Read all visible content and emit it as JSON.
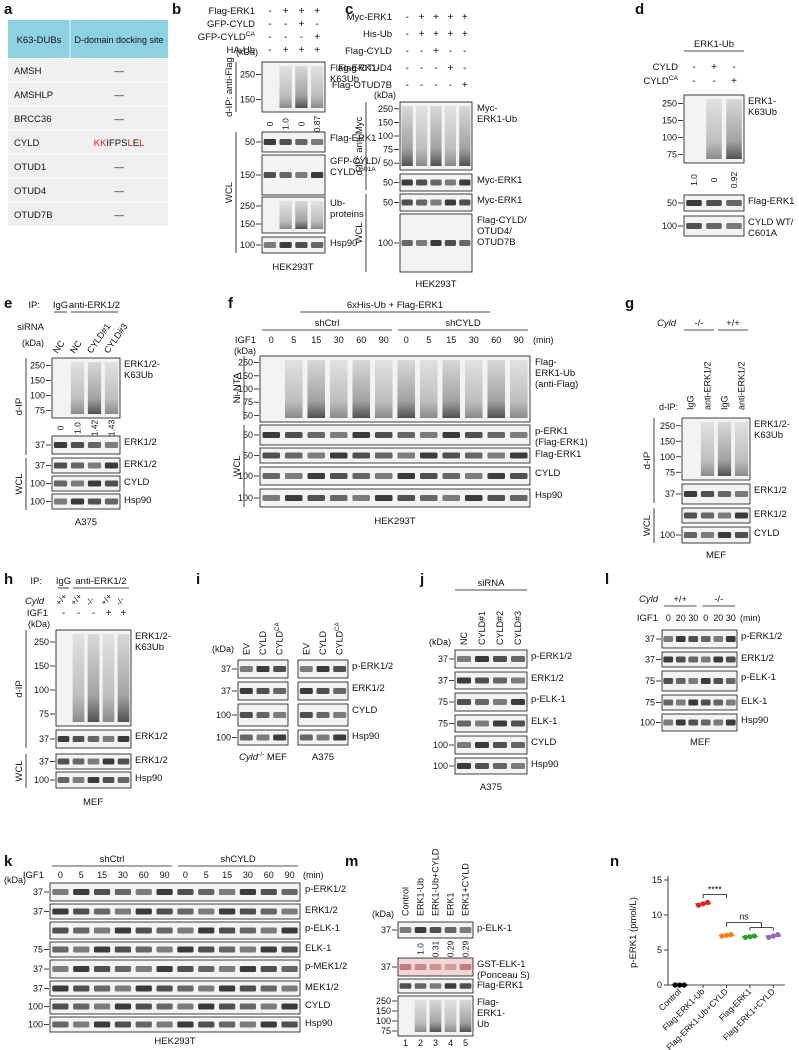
{
  "panels": {
    "a": {
      "label": "a",
      "header": [
        "K63-DUBs",
        "D-domain docking site"
      ],
      "rows": [
        {
          "dub": "AMSH",
          "site": "—"
        },
        {
          "dub": "AMSHLP",
          "site": "—"
        },
        {
          "dub": "BRCC36",
          "site": "—"
        },
        {
          "dub": "CYLD",
          "site": [
            {
              "text": "KK",
              "color": "#e31a1c"
            },
            {
              "text": "IFPS",
              "color": "#111111"
            },
            {
              "text": "L",
              "color": "#e31a1c"
            },
            {
              "text": "E",
              "color": "#111111"
            },
            {
              "text": "L",
              "color": "#e31a1c"
            }
          ]
        },
        {
          "dub": "OTUD1",
          "site": "—"
        },
        {
          "dub": "OTUD4",
          "site": "—"
        },
        {
          "dub": "OTUD7B",
          "site": "—"
        }
      ]
    },
    "b": {
      "label": "b",
      "conditions": [
        {
          "name": "Flag-ERK1",
          "signs": [
            "-",
            "+",
            "+",
            "+"
          ]
        },
        {
          "name": "GFP-CYLD",
          "signs": [
            "-",
            "-",
            "+",
            "-"
          ]
        },
        {
          "name": {
            "text": "GFP-CYLD",
            "sup": "CA"
          },
          "signs": [
            "-",
            "-",
            "-",
            "+"
          ]
        },
        {
          "name": "HA-Ub",
          "signs": [
            "-",
            "+",
            "+",
            "+"
          ]
        }
      ],
      "kda": "(kDa)",
      "blots": [
        {
          "markers": [
            "250",
            "150"
          ],
          "label": [
            "Flag-ERK1-",
            "K63Ub"
          ]
        },
        {
          "markers": [
            "50"
          ],
          "label": [
            "Flag-ERK1"
          ]
        },
        {
          "markers": [
            "150"
          ],
          "label": [
            "GFP-CYLD/",
            {
              "text": "CYLD",
              "sup": "C601A"
            }
          ]
        },
        {
          "markers": [
            "250",
            "150"
          ],
          "label": [
            "Ub-",
            "proteins"
          ]
        },
        {
          "markers": [
            "100"
          ],
          "label": [
            "Hsp90"
          ]
        }
      ],
      "quant": [
        "0",
        "1.0",
        "0",
        "0.87"
      ],
      "sides": [
        "d-IP: anti-Flag",
        "WCL"
      ],
      "cell": "HEK293T"
    },
    "c": {
      "label": "c",
      "conditions": [
        {
          "name": "Myc-ERK1",
          "signs": [
            "-",
            "+",
            "+",
            "+",
            "+"
          ]
        },
        {
          "name": "His-Ub",
          "signs": [
            "-",
            "+",
            "+",
            "+",
            "+"
          ]
        },
        {
          "name": "Flag-CYLD",
          "signs": [
            "-",
            "-",
            "+",
            "-",
            "-"
          ]
        },
        {
          "name": "Flag-OTUD4",
          "signs": [
            "-",
            "-",
            "-",
            "+",
            "-"
          ]
        },
        {
          "name": "Flag-OTUD7B",
          "signs": [
            "-",
            "-",
            "-",
            "-",
            "+"
          ]
        }
      ],
      "kda": "(kDa)",
      "blots": [
        {
          "markers": [
            "250",
            "150",
            "100",
            "75",
            "50"
          ],
          "label": [
            "Myc-",
            "ERK1-Ub"
          ]
        },
        {
          "markers": [
            "50"
          ],
          "label": [
            "Myc-ERK1"
          ]
        },
        {
          "markers": [
            "50"
          ],
          "label": [
            "Myc-ERK1"
          ]
        },
        {
          "markers": [
            "100"
          ],
          "label": [
            "Flag-CYLD/",
            "OTUD4/",
            "OTUD7B"
          ]
        }
      ],
      "sides": [
        "d-IP: anti-Myc",
        "WCL"
      ],
      "cell": "HEK293T"
    },
    "d": {
      "label": "d",
      "header": "ERK1-Ub",
      "conditions": [
        {
          "name": "CYLD",
          "signs": [
            "-",
            "+",
            "-"
          ]
        },
        {
          "name": {
            "text": "CYLD",
            "sup": "CA"
          },
          "signs": [
            "-",
            "-",
            "+"
          ]
        }
      ],
      "blots": [
        {
          "markers": [
            "250",
            "150",
            "100",
            "75"
          ],
          "label": [
            "ERK1-",
            "K63Ub"
          ]
        },
        {
          "markers": [
            "50"
          ],
          "label": [
            "Flag-ERK1"
          ]
        },
        {
          "markers": [
            "100"
          ],
          "label": [
            "CYLD WT/",
            "C601A"
          ]
        }
      ],
      "quant": [
        "1.0",
        "0",
        "0.92"
      ]
    },
    "e": {
      "label": "e",
      "ip": "IP:",
      "ip_groups": [
        "IgG",
        "anti-ERK1/2"
      ],
      "sirna": "siRNA",
      "lanes": [
        "NC",
        "NC",
        "CYLD#1",
        "CYLD#3"
      ],
      "kda": "(kDa)",
      "blots": [
        {
          "markers": [
            "250",
            "150",
            "100",
            "75"
          ],
          "label": [
            "ERK1/2-",
            "K63Ub"
          ]
        },
        {
          "markers": [
            "37"
          ],
          "label": [
            "ERK1/2"
          ]
        },
        {
          "markers": [
            "37"
          ],
          "label": [
            "ERK1/2"
          ]
        },
        {
          "markers": [
            "100"
          ],
          "label": [
            "CYLD"
          ]
        },
        {
          "markers": [
            "100"
          ],
          "label": [
            "Hsp90"
          ]
        }
      ],
      "quant": [
        "0",
        "1.0",
        "1.42",
        "1.43"
      ],
      "sides": [
        "d-IP",
        "WCL"
      ],
      "cell": "A375"
    },
    "f": {
      "label": "f",
      "header": "6xHis-Ub + Flag-ERK1",
      "groups": [
        "shCtrl",
        "shCYLD"
      ],
      "igf1": "IGF1",
      "times": [
        "0",
        "5",
        "15",
        "30",
        "60",
        "90",
        "0",
        "5",
        "15",
        "30",
        "60",
        "90"
      ],
      "unit": "(min)",
      "kda": "(kDa)",
      "blots": [
        {
          "markers": [
            "250",
            "150",
            "100",
            "75",
            "50"
          ],
          "label": [
            "Flag-",
            "ERK1-Ub",
            "(anti-Flag)"
          ]
        },
        {
          "markers": [
            "50"
          ],
          "label": [
            "p-ERK1",
            "(Flag-ERK1)"
          ]
        },
        {
          "markers": [
            "50"
          ],
          "label": [
            "Flag-ERK1"
          ]
        },
        {
          "markers": [
            "100"
          ],
          "label": [
            "CYLD"
          ]
        },
        {
          "markers": [
            "100"
          ],
          "label": [
            "Hsp90"
          ]
        }
      ],
      "sides": [
        "Ni-NTA",
        "WCL"
      ],
      "cell": "HEK293T"
    },
    "g": {
      "label": "g",
      "genotype_label": "Cyld",
      "genotypes": [
        "-/-",
        "+/+"
      ],
      "lanes": [
        "IgG",
        "anti-ERK1/2",
        "IgG",
        "anti-ERK1/2"
      ],
      "dip": "d-IP:",
      "blots": [
        {
          "markers": [
            "250",
            "150",
            "100",
            "75"
          ],
          "label": [
            "ERK1/2-",
            "K63Ub"
          ]
        },
        {
          "markers": [
            "37"
          ],
          "label": [
            "ERK1/2"
          ]
        },
        {
          "markers": [],
          "label": [
            "ERK1/2"
          ]
        },
        {
          "markers": [
            "100"
          ],
          "label": [
            "CYLD"
          ]
        }
      ],
      "sides": [
        "d-IP",
        "WCL"
      ],
      "cell": "MEF"
    },
    "h": {
      "label": "h",
      "ip": "IP:",
      "ip_groups": [
        "IgG",
        "anti-ERK1/2"
      ],
      "genotype_label": "Cyld",
      "genotypes": [
        "+/+",
        "+/+",
        "-/-",
        "+/+",
        "-/-"
      ],
      "conditions": [
        {
          "name": "IGF1",
          "signs": [
            "-",
            "-",
            "-",
            "+",
            "+"
          ]
        }
      ],
      "kda": "(kDa)",
      "blots": [
        {
          "markers": [
            "250",
            "150",
            "100",
            "75"
          ],
          "label": [
            "ERK1/2-",
            "K63Ub"
          ]
        },
        {
          "markers": [
            "37"
          ],
          "label": [
            "ERK1/2"
          ]
        },
        {
          "markers": [
            "37"
          ],
          "label": [
            "ERK1/2"
          ]
        },
        {
          "markers": [
            "100"
          ],
          "label": [
            "Hsp90"
          ]
        }
      ],
      "sides": [
        "d-IP",
        "WCL"
      ],
      "cell": "MEF"
    },
    "i": {
      "label": "i",
      "kda": "(kDa)",
      "lanes": [
        [
          "EV",
          "CYLD",
          {
            "text": "CYLD",
            "sup": "CA"
          }
        ],
        [
          "EV",
          "CYLD",
          {
            "text": "CYLD",
            "sup": "CA"
          }
        ]
      ],
      "blots": [
        {
          "markers": [
            "37"
          ],
          "label": [
            "p-ERK1/2"
          ]
        },
        {
          "markers": [
            "37"
          ],
          "label": [
            "ERK1/2"
          ]
        },
        {
          "markers": [
            "100"
          ],
          "label": [
            "CYLD"
          ]
        },
        {
          "markers": [
            "100"
          ],
          "label": [
            "Hsp90"
          ]
        }
      ],
      "cells": [
        {
          "text": "Cyld",
          "sup": "-/-",
          "tail": " MEF"
        },
        "A375"
      ]
    },
    "j": {
      "label": "j",
      "sirna": "siRNA",
      "lanes": [
        "NC",
        "CYLD#1",
        "CYLD#2",
        "CYLD#3"
      ],
      "kda": "(kDa)",
      "blots": [
        {
          "markers": [
            "37"
          ],
          "label": [
            "p-ERK1/2"
          ]
        },
        {
          "markers": [
            "37"
          ],
          "label": [
            "ERK1/2"
          ]
        },
        {
          "markers": [
            "75"
          ],
          "label": [
            "p-ELK-1"
          ]
        },
        {
          "markers": [
            "75"
          ],
          "label": [
            "ELK-1"
          ]
        },
        {
          "markers": [
            "100"
          ],
          "label": [
            "CYLD"
          ]
        },
        {
          "markers": [
            "100"
          ],
          "label": [
            "Hsp90"
          ]
        }
      ],
      "cell": "A375"
    },
    "l": {
      "label": "l",
      "genotype_label": "Cyld",
      "genotypes": [
        "+/+",
        "-/-"
      ],
      "igf1": "IGF1",
      "times": [
        "0",
        "20",
        "30",
        "0",
        "20",
        "30"
      ],
      "unit": "(min)",
      "blots": [
        {
          "markers": [
            "37"
          ],
          "label": [
            "p-ERK1/2"
          ]
        },
        {
          "markers": [
            "37"
          ],
          "label": [
            "ERK1/2"
          ]
        },
        {
          "markers": [
            "75"
          ],
          "label": [
            "p-ELK-1"
          ]
        },
        {
          "markers": [
            "75"
          ],
          "label": [
            "ELK-1"
          ]
        },
        {
          "markers": [
            "100"
          ],
          "label": [
            "Hsp90"
          ]
        }
      ],
      "cell": "MEF"
    },
    "k": {
      "label": "k",
      "groups": [
        "shCtrl",
        "shCYLD"
      ],
      "igf1": "IGF1",
      "times": [
        "0",
        "5",
        "15",
        "30",
        "60",
        "90",
        "0",
        "5",
        "15",
        "30",
        "60",
        "90"
      ],
      "unit": "(min)",
      "kda": "(kDa)",
      "blots": [
        {
          "markers": [
            "37"
          ],
          "label": [
            "p-ERK1/2"
          ]
        },
        {
          "markers": [
            "37"
          ],
          "label": [
            "ERK1/2"
          ]
        },
        {
          "markers": [],
          "label": [
            "p-ELK-1"
          ]
        },
        {
          "markers": [
            "75"
          ],
          "label": [
            "ELK-1"
          ]
        },
        {
          "markers": [
            "37"
          ],
          "label": [
            "p-MEK1/2"
          ]
        },
        {
          "markers": [
            "37"
          ],
          "label": [
            "MEK1/2"
          ]
        },
        {
          "markers": [
            "100"
          ],
          "label": [
            "CYLD"
          ]
        },
        {
          "markers": [
            "100"
          ],
          "label": [
            "Hsp90"
          ]
        }
      ],
      "cell": "HEK293T"
    },
    "m": {
      "label": "m",
      "lanes": [
        "Control",
        "ERK1-Ub",
        "ERK1-Ub+CYLD",
        "ERK1",
        "ERK1+CYLD"
      ],
      "kda": "(kDa)",
      "blots": [
        {
          "markers": [
            "37"
          ],
          "label": [
            "p-ELK-1"
          ]
        },
        {
          "markers": [
            "37"
          ],
          "label": [
            "GST-ELK-1",
            "(Ponceau S)"
          ]
        },
        {
          "markers": [],
          "label": [
            "Flag-ERK1"
          ]
        },
        {
          "markers": [
            "250",
            "150",
            "100",
            "75"
          ],
          "label": [
            "Flag-",
            "ERK1-",
            "Ub"
          ]
        }
      ],
      "quant": [
        "1.0",
        "0.31",
        "0.29",
        "0.29"
      ],
      "lane_numbers": [
        "1",
        "2",
        "3",
        "4",
        "5"
      ]
    },
    "n": {
      "label": "n",
      "chart": {
        "type": "dot",
        "ylabel": "p-ERK1 (pmol/L)",
        "categories": [
          "Control",
          "Flag-ERK1-Ub",
          "Flag-ERK1-Ub+CYLD",
          "Flag-ERK1",
          "Flag-ERK1+CYLD"
        ],
        "values": [
          [
            0,
            0,
            0
          ],
          [
            11.4,
            11.6,
            11.8
          ],
          [
            7.0,
            7.1,
            7.2
          ],
          [
            6.8,
            6.9,
            7.0
          ],
          [
            6.8,
            7.0,
            7.2
          ]
        ],
        "colors": [
          "#000000",
          "#d62728",
          "#ff7f0e",
          "#2ca02c",
          "#9467bd"
        ],
        "ylim": [
          0,
          15
        ],
        "yticks": [
          0,
          5,
          10,
          15
        ],
        "annotations": [
          "****",
          "ns"
        ]
      }
    }
  }
}
